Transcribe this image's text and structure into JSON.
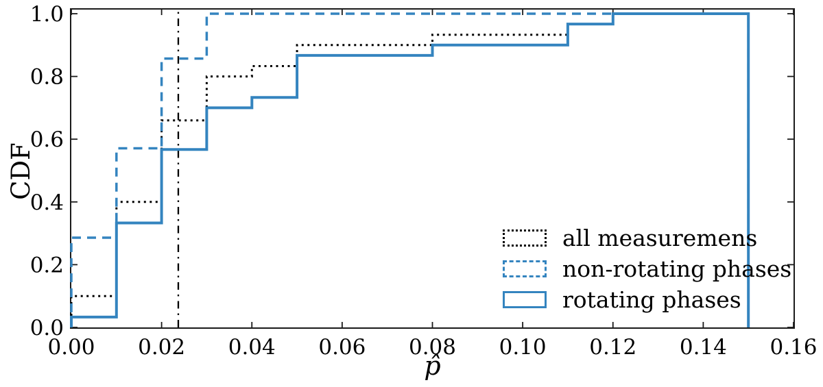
{
  "figure": {
    "background": "#ffffff",
    "accent_blue": "#3484bf",
    "axis_color": "#1a1a1a"
  },
  "chart_data": {
    "type": "line",
    "subtype": "cumulative-step-histogram",
    "title": "",
    "xlabel": "p̂",
    "ylabel": "CDF",
    "xlim": [
      0.0,
      0.16
    ],
    "ylim": [
      0.0,
      1.0
    ],
    "grid": false,
    "legend_position": "inside lower-right",
    "x_tick_values": [
      0.0,
      0.02,
      0.04,
      0.06,
      0.08,
      0.1,
      0.12,
      0.14,
      0.16
    ],
    "x_tick_labels": [
      "0.00",
      "0.02",
      "0.04",
      "0.06",
      "0.08",
      "0.10",
      "0.12",
      "0.14",
      "0.16"
    ],
    "y_tick_values": [
      0.0,
      0.2,
      0.4,
      0.6,
      0.8,
      1.0
    ],
    "y_tick_labels": [
      "0.0",
      "0.2",
      "0.4",
      "0.6",
      "0.8",
      "1.0"
    ],
    "series": [
      {
        "name": "all measuremens",
        "color": "#000000",
        "line_style": "dotted",
        "line_width": 3,
        "points": [
          [
            0,
            0
          ],
          [
            0,
            0.1
          ],
          [
            0.01,
            0.1
          ],
          [
            0.01,
            0.4
          ],
          [
            0.02,
            0.4
          ],
          [
            0.02,
            0.66
          ],
          [
            0.03,
            0.66
          ],
          [
            0.03,
            0.8
          ],
          [
            0.04,
            0.8
          ],
          [
            0.04,
            0.833
          ],
          [
            0.05,
            0.833
          ],
          [
            0.05,
            0.9
          ],
          [
            0.08,
            0.9
          ],
          [
            0.08,
            0.933
          ],
          [
            0.11,
            0.933
          ],
          [
            0.11,
            0.967
          ],
          [
            0.12,
            0.967
          ],
          [
            0.12,
            1.0
          ],
          [
            0.15,
            1.0
          ],
          [
            0.15,
            0
          ]
        ]
      },
      {
        "name": "non-rotating phases",
        "color": "#3484bf",
        "line_style": "dashed",
        "line_width": 3.5,
        "points": [
          [
            0,
            0
          ],
          [
            0,
            0.286
          ],
          [
            0.01,
            0.286
          ],
          [
            0.01,
            0.571
          ],
          [
            0.02,
            0.571
          ],
          [
            0.02,
            0.857
          ],
          [
            0.03,
            0.857
          ],
          [
            0.03,
            1.0
          ],
          [
            0.15,
            1.0
          ],
          [
            0.15,
            0
          ]
        ]
      },
      {
        "name": "rotating phases",
        "color": "#3484bf",
        "line_style": "solid",
        "line_width": 4,
        "points": [
          [
            0,
            0
          ],
          [
            0,
            0.033
          ],
          [
            0.01,
            0.033
          ],
          [
            0.01,
            0.333
          ],
          [
            0.02,
            0.333
          ],
          [
            0.02,
            0.567
          ],
          [
            0.03,
            0.567
          ],
          [
            0.03,
            0.7
          ],
          [
            0.04,
            0.7
          ],
          [
            0.04,
            0.733
          ],
          [
            0.05,
            0.733
          ],
          [
            0.05,
            0.867
          ],
          [
            0.08,
            0.867
          ],
          [
            0.08,
            0.9
          ],
          [
            0.11,
            0.9
          ],
          [
            0.11,
            0.967
          ],
          [
            0.12,
            0.967
          ],
          [
            0.12,
            1.0
          ],
          [
            0.15,
            1.0
          ],
          [
            0.15,
            0
          ]
        ]
      }
    ],
    "vline": {
      "x": 0.0237,
      "color": "#000000",
      "line_style": "dashdot",
      "line_width": 2.3
    }
  }
}
